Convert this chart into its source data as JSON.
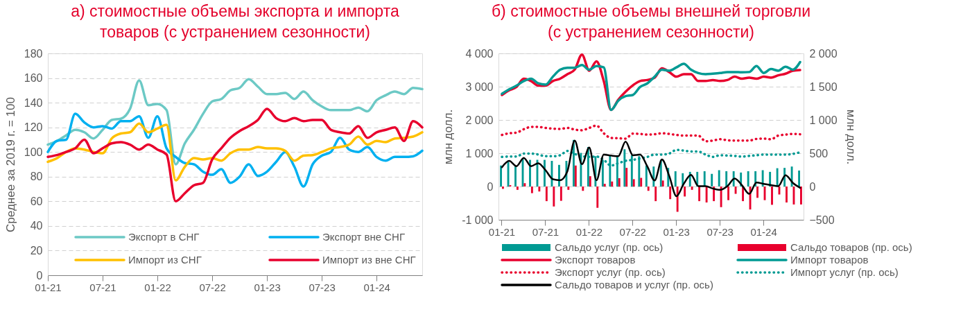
{
  "chart_data": [
    {
      "type": "line",
      "title": "а) стоимостные объемы экспорта и импорта товаров (с устранением сезонности)",
      "ylabel": "Среднее за 2019 г. = 100",
      "categories": [
        "01-21",
        null,
        null,
        null,
        null,
        null,
        "07-21",
        null,
        null,
        null,
        null,
        null,
        "01-22",
        null,
        null,
        null,
        null,
        null,
        "07-22",
        null,
        null,
        null,
        null,
        null,
        "01-23",
        null,
        null,
        null,
        null,
        null,
        "07-23",
        null,
        null,
        null,
        null,
        null,
        "01-24",
        null,
        null,
        null,
        null,
        null
      ],
      "ylim": [
        0,
        180
      ],
      "yticks": [
        0,
        20,
        40,
        60,
        80,
        100,
        120,
        140,
        160,
        180
      ],
      "grid": "y",
      "legend": "bottom",
      "series": [
        {
          "name": "Экспорт в СНГ",
          "color": "#6cc9c5",
          "values": [
            106,
            109,
            113.5,
            118,
            116,
            111,
            118,
            126,
            127,
            135,
            158,
            138,
            139,
            134,
            90,
            107,
            118,
            131,
            141,
            143,
            150,
            152,
            159,
            153,
            147,
            147,
            148,
            143,
            149,
            142,
            137,
            134,
            134,
            134,
            136,
            133,
            142,
            146,
            149,
            147,
            152,
            151
          ]
        },
        {
          "name": "Экспорт вне СНГ",
          "color": "#00b0f0",
          "values": [
            100,
            109,
            110,
            131,
            124,
            120,
            121,
            119,
            125,
            125,
            129,
            111.5,
            129,
            103,
            96,
            91,
            90,
            84,
            81.5,
            86,
            75,
            80,
            90,
            80.6,
            84,
            92,
            100,
            88,
            72,
            90,
            97,
            100,
            111.5,
            102,
            100,
            104,
            96,
            93,
            96,
            96,
            96.5,
            101
          ]
        },
        {
          "name": "Импорт из СНГ",
          "color": "#ffc000",
          "values": [
            92,
            95,
            100,
            103,
            102,
            100,
            99,
            111,
            115,
            116,
            123,
            116,
            119,
            122,
            77,
            88,
            95,
            94,
            95,
            93,
            99,
            102,
            102,
            104,
            103,
            103,
            101,
            93,
            97,
            97.5,
            100,
            103,
            104,
            106,
            112.5,
            106,
            109,
            108,
            111,
            111.5,
            112.5,
            116
          ]
        },
        {
          "name": "Импорт из вне СНГ",
          "color": "#e8002d",
          "values": [
            96,
            97.5,
            100,
            103,
            110,
            99,
            103,
            107,
            108,
            106,
            102,
            106,
            102,
            98,
            60,
            66.5,
            73,
            75,
            94,
            103,
            111.5,
            117,
            121,
            126,
            135,
            127.5,
            125,
            127.5,
            125,
            126,
            126,
            118,
            116,
            115,
            121,
            111.5,
            116,
            118,
            120,
            109,
            125,
            120
          ]
        }
      ]
    },
    {
      "type": "bar",
      "title": "б) стоимостные объемы внешней торговли (с устранением сезонности)",
      "ylabel": "млн долл.",
      "y2label": "млн долл.",
      "categories": [
        "01-21",
        null,
        null,
        null,
        null,
        null,
        "07-21",
        null,
        null,
        null,
        null,
        null,
        "01-22",
        null,
        null,
        null,
        null,
        null,
        "07-22",
        null,
        null,
        null,
        null,
        null,
        "01-23",
        null,
        null,
        null,
        null,
        null,
        "07-23",
        null,
        null,
        null,
        null,
        null,
        "01-24",
        null,
        null,
        null,
        null,
        null
      ],
      "ylim": [
        -1000,
        4000
      ],
      "yticks": [
        {
          "value": -1000,
          "label": "-1 000"
        },
        0,
        {
          "value": 1000,
          "label": "1 000"
        },
        {
          "value": 2000,
          "label": "2 000"
        },
        {
          "value": 3000,
          "label": "3 000"
        },
        {
          "value": 4000,
          "label": "4 000"
        }
      ],
      "y2lim": [
        -500,
        2000
      ],
      "y2ticks": [
        -500,
        0,
        500,
        {
          "value": 1000,
          "label": "1 000"
        },
        {
          "value": 1500,
          "label": "1 500"
        },
        {
          "value": 2000,
          "label": "2 000"
        }
      ],
      "grid": "y",
      "legend": "bottom",
      "series": [
        {
          "name": "Сальдо услуг (пр. ось)",
          "type": "bar",
          "axis": "y2",
          "color": "#009a93",
          "values": [
            315,
            370,
            305,
            420,
            400,
            400,
            400,
            385,
            325,
            385,
            700,
            505,
            595,
            455,
            400,
            470,
            455,
            560,
            470,
            455,
            315,
            300,
            400,
            280,
            230,
            200,
            220,
            220,
            230,
            190,
            245,
            230,
            230,
            210,
            230,
            230,
            245,
            220,
            275,
            280,
            300,
            240
          ]
        },
        {
          "name": "Сальдо товаров (пр. ось)",
          "type": "bar",
          "axis": "y2",
          "color": "#e8002d",
          "values": [
            -35,
            20,
            -50,
            50,
            -100,
            -75,
            -220,
            -300,
            -215,
            -50,
            315,
            -65,
            155,
            -320,
            40,
            75,
            125,
            280,
            110,
            130,
            -65,
            -220,
            90,
            -190,
            -380,
            -150,
            -50,
            -220,
            -240,
            -220,
            -310,
            -205,
            -110,
            -220,
            -345,
            -170,
            -205,
            -275,
            -120,
            -240,
            -270,
            -270
          ]
        },
        {
          "name": "Экспорт товаров",
          "type": "line",
          "color": "#e8002d",
          "line_style": "solid",
          "values": [
            2750,
            2890,
            2990,
            3240,
            3170,
            3030,
            3030,
            3170,
            3240,
            3375,
            3510,
            3965,
            3480,
            3760,
            3170,
            2300,
            2610,
            2850,
            3040,
            3170,
            3200,
            3270,
            3550,
            3440,
            3300,
            3375,
            3375,
            3170,
            3170,
            3200,
            3170,
            3200,
            3300,
            3240,
            3270,
            3240,
            3300,
            3270,
            3340,
            3390,
            3480,
            3500
          ]
        },
        {
          "name": "Импорт товаров",
          "type": "line",
          "color": "#009a93",
          "line_style": "solid",
          "values": [
            2785,
            2920,
            3030,
            3170,
            3240,
            3100,
            3060,
            3300,
            3510,
            3570,
            3570,
            3650,
            3510,
            3620,
            3580,
            2300,
            2580,
            2715,
            2750,
            2990,
            3100,
            3300,
            3510,
            3480,
            3580,
            3690,
            3510,
            3410,
            3375,
            3390,
            3410,
            3440,
            3440,
            3430,
            3440,
            3620,
            3410,
            3530,
            3480,
            3600,
            3510,
            3740
          ]
        },
        {
          "name": "Экспорт услуг (пр. ось)",
          "type": "line",
          "axis": "y2",
          "color": "#e8002d",
          "line_style": "dotted",
          "values": [
            775,
            800,
            810,
            860,
            895,
            895,
            880,
            870,
            865,
            880,
            855,
            845,
            880,
            915,
            800,
            730,
            725,
            720,
            795,
            790,
            780,
            785,
            800,
            790,
            775,
            765,
            765,
            765,
            680,
            690,
            710,
            695,
            690,
            690,
            690,
            715,
            720,
            710,
            765,
            780,
            790,
            785
          ]
        },
        {
          "name": "Импорт услуг (пр. ось)",
          "type": "line",
          "axis": "y2",
          "color": "#009a93",
          "line_style": "dotted",
          "values": [
            445,
            450,
            450,
            495,
            495,
            480,
            455,
            455,
            470,
            535,
            490,
            455,
            445,
            450,
            400,
            315,
            350,
            385,
            400,
            420,
            445,
            480,
            480,
            495,
            550,
            540,
            525,
            525,
            480,
            445,
            470,
            465,
            460,
            450,
            460,
            470,
            480,
            480,
            480,
            480,
            490,
            515
          ]
        },
        {
          "name": "Сальдо товаров и услуг (пр. ось)",
          "type": "line",
          "axis": "y2",
          "color": "#000000",
          "line_style": "solid",
          "values": [
            290,
            385,
            305,
            430,
            305,
            350,
            245,
            110,
            95,
            230,
            690,
            335,
            585,
            95,
            480,
            465,
            455,
            675,
            470,
            480,
            300,
            90,
            405,
            160,
            -145,
            40,
            175,
            5,
            5,
            -30,
            -50,
            5,
            120,
            20,
            -110,
            60,
            40,
            20,
            5,
            170,
            55,
            -20
          ]
        }
      ]
    }
  ]
}
